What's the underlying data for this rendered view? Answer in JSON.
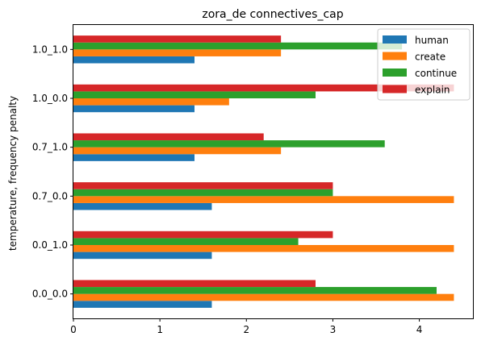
{
  "chart_data": {
    "type": "bar",
    "orientation": "horizontal",
    "title": "zora_de connectives_cap",
    "xlabel": "",
    "ylabel": "temperature, frequency penalty",
    "categories": [
      "0.0_0.0",
      "0.0_1.0",
      "0.7_0.0",
      "0.7_1.0",
      "1.0_0.0",
      "1.0_1.0"
    ],
    "xlim": [
      0,
      4.62
    ],
    "xticks": [
      0,
      1,
      2,
      3,
      4
    ],
    "grid": false,
    "legend_position": "top-right",
    "series": [
      {
        "name": "human",
        "color": "#1f77b4",
        "values": [
          1.6,
          1.6,
          1.6,
          1.4,
          1.4,
          1.4
        ]
      },
      {
        "name": "create",
        "color": "#ff7f0e",
        "values": [
          4.4,
          4.4,
          4.4,
          2.4,
          1.8,
          2.4
        ]
      },
      {
        "name": "continue",
        "color": "#2ca02c",
        "values": [
          4.2,
          2.6,
          3.0,
          3.6,
          2.8,
          3.8
        ]
      },
      {
        "name": "explain",
        "color": "#d62728",
        "values": [
          2.8,
          3.0,
          3.0,
          2.2,
          4.4,
          2.4
        ]
      }
    ]
  }
}
